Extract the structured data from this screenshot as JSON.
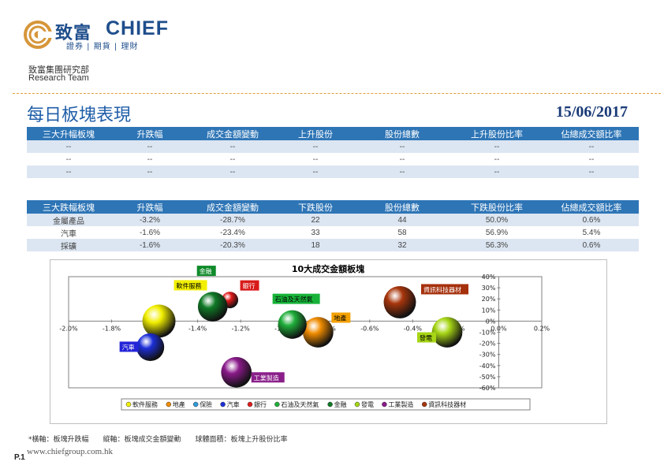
{
  "header": {
    "brand_cn": "致富",
    "brand_en": "CHIEF",
    "brand_sub": "證券 | 期貨 | 理財",
    "dept_cn": "致富集團研究部",
    "dept_en": "Research Team",
    "page_title": "每日板塊表現",
    "date": "15/06/2017"
  },
  "top_table": {
    "headers": [
      "三大升幅板塊",
      "升跌幅",
      "成交金額變動",
      "上升股份",
      "股份總數",
      "上升股份比率",
      "佔總成交額比率"
    ],
    "rows": [
      [
        "--",
        "--",
        "--",
        "--",
        "--",
        "--",
        "--"
      ],
      [
        "--",
        "--",
        "--",
        "--",
        "--",
        "--",
        "--"
      ],
      [
        "--",
        "--",
        "--",
        "--",
        "--",
        "--",
        "--"
      ]
    ]
  },
  "bottom_table": {
    "headers": [
      "三大跌幅板塊",
      "升跌幅",
      "成交金額變動",
      "下跌股份",
      "股份總數",
      "下跌股份比率",
      "佔總成交額比率"
    ],
    "rows": [
      [
        "金屬產品",
        "-3.2%",
        "-28.7%",
        "22",
        "44",
        "50.0%",
        "0.6%"
      ],
      [
        "汽車",
        "-1.6%",
        "-23.4%",
        "33",
        "58",
        "56.9%",
        "5.4%"
      ],
      [
        "採礦",
        "-1.6%",
        "-20.3%",
        "18",
        "32",
        "56.3%",
        "0.6%"
      ]
    ]
  },
  "chart_data": {
    "type": "scatter",
    "title": "10大成交金額板塊",
    "xlim": [
      -0.02,
      0.002
    ],
    "ylim": [
      -0.6,
      0.4
    ],
    "x_ticks": [
      "-2.0%",
      "-1.8%",
      "-1.6%",
      "-1.4%",
      "-1.2%",
      "-1.0%",
      "-0.8%",
      "-0.6%",
      "-0.4%",
      "-0.2%",
      "0.0%",
      "0.2%"
    ],
    "y_ticks": [
      "40%",
      "30%",
      "20%",
      "10%",
      "0%",
      "-10%",
      "-20%",
      "-30%",
      "-40%",
      "-50%",
      "-60%"
    ],
    "legend_position": "bottom",
    "series": [
      {
        "name": "軟件服務",
        "x": -0.0158,
        "y": 0.0,
        "size": 1.0,
        "color": "#f2ef00",
        "label_bg": "#f2ef00",
        "label_fg": "#000000"
      },
      {
        "name": "地產",
        "x": -0.0084,
        "y": -0.1,
        "size": 0.85,
        "color": "#f08c00",
        "label_bg": "#f4a200",
        "label_fg": "#000000"
      },
      {
        "name": "保險",
        "x": -0.0095,
        "y": 0.0,
        "size": 0.0,
        "color": "#2f9bd9",
        "label_bg": "#2f9bd9",
        "label_fg": "#ffffff"
      },
      {
        "name": "汽車",
        "x": -0.0162,
        "y": -0.234,
        "size": 0.7,
        "color": "#1c2fd8",
        "label_bg": "#2424d8",
        "label_fg": "#ffffff"
      },
      {
        "name": "銀行",
        "x": -0.0125,
        "y": 0.19,
        "size": 0.25,
        "color": "#e21b1b",
        "label_bg": "#d81a1a",
        "label_fg": "#ffffff"
      },
      {
        "name": "石油及天然氣",
        "x": -0.0096,
        "y": -0.03,
        "size": 0.75,
        "color": "#1fae3a",
        "label_bg": "#17b339",
        "label_fg": "#000000"
      },
      {
        "name": "金融",
        "x": -0.0133,
        "y": 0.13,
        "size": 0.8,
        "color": "#0f7a26",
        "label_bg": "#0f8a2a",
        "label_fg": "#ffffff"
      },
      {
        "name": "發電",
        "x": -0.0024,
        "y": -0.1,
        "size": 0.85,
        "color": "#a7d616",
        "label_bg": "#a7d616",
        "label_fg": "#000000"
      },
      {
        "name": "工業製造",
        "x": -0.0122,
        "y": -0.46,
        "size": 0.85,
        "color": "#8a1a8a",
        "label_bg": "#8a1f8a",
        "label_fg": "#ffffff"
      },
      {
        "name": "資訊科技器材",
        "x": -0.0046,
        "y": 0.17,
        "size": 0.95,
        "color": "#a8360c",
        "label_bg": "#a5300c",
        "label_fg": "#ffffff"
      }
    ]
  },
  "footnote": "*橫軸：板塊升跌幅　　縱軸：板塊成交金額變動　　球體面積：板塊上升股份比率",
  "page_no": "P.1",
  "website": "www.chiefgroup.com.hk"
}
